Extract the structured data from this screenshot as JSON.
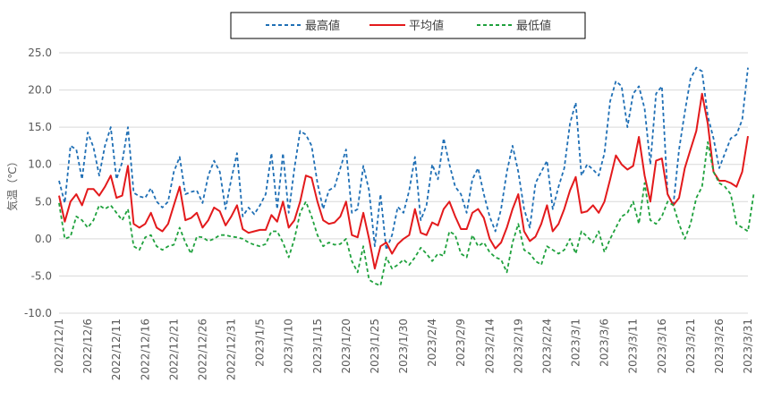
{
  "chart_data": {
    "type": "line",
    "ylabel": "気温（℃）",
    "ylim": [
      -10,
      25
    ],
    "y_ticks": [
      "25.0",
      "20.0",
      "15.0",
      "10.0",
      "5.0",
      "0.0",
      "-5.0",
      "-10.0"
    ],
    "y_tick_values": [
      25,
      20,
      15,
      10,
      5,
      0,
      -5,
      -10
    ],
    "grid": true,
    "legend_position": "top-center",
    "x_start": "2022-12-01",
    "x_tick_labels": [
      "2022/12/1",
      "2022/12/6",
      "2022/12/11",
      "2022/12/16",
      "2022/12/21",
      "2022/12/26",
      "2022/12/31",
      "2023/1/5",
      "2023/1/10",
      "2023/1/15",
      "2023/1/20",
      "2023/1/25",
      "2023/1/30",
      "2023/2/4",
      "2023/2/9",
      "2023/2/14",
      "2023/2/19",
      "2023/2/24",
      "2023/3/1",
      "2023/3/6",
      "2023/3/11",
      "2023/3/16",
      "2023/3/21",
      "2023/3/26",
      "2023/3/31"
    ],
    "series": [
      {
        "name": "最高値",
        "color": "#1f6fb5",
        "style": "dashed",
        "values": [
          7.8,
          4.8,
          12.5,
          12.0,
          8.0,
          14.3,
          12.3,
          8.5,
          12.5,
          15.0,
          8.0,
          10.3,
          15.0,
          6.2,
          5.7,
          5.5,
          6.8,
          5.0,
          4.2,
          5.0,
          9.0,
          11.0,
          6.0,
          6.3,
          6.5,
          4.8,
          8.5,
          10.5,
          9.0,
          4.0,
          8.0,
          11.5,
          3.0,
          4.2,
          3.3,
          4.5,
          6.0,
          11.5,
          4.0,
          11.5,
          3.5,
          9.5,
          14.5,
          14.0,
          12.5,
          7.5,
          4.0,
          6.5,
          7.0,
          9.5,
          12.0,
          3.5,
          4.0,
          9.8,
          6.5,
          -1.0,
          6.0,
          -1.5,
          0.5,
          4.3,
          3.5,
          6.5,
          11.0,
          2.5,
          4.5,
          10.0,
          8.0,
          13.5,
          10.0,
          7.0,
          6.0,
          3.5,
          8.0,
          9.5,
          6.0,
          3.0,
          1.0,
          4.0,
          9.0,
          12.5,
          9.0,
          4.0,
          1.5,
          7.5,
          9.0,
          10.5,
          4.0,
          7.0,
          9.5,
          15.5,
          18.3,
          8.5,
          10.0,
          9.3,
          8.5,
          11.5,
          18.5,
          21.2,
          20.5,
          15.0,
          19.5,
          20.5,
          17.5,
          10.0,
          19.5,
          20.5,
          6.0,
          4.5,
          12.0,
          17.0,
          21.5,
          23.0,
          22.5,
          16.5,
          13.5,
          9.5,
          11.5,
          13.5,
          14.0,
          16.0,
          23.0
        ]
      },
      {
        "name": "平均値",
        "color": "#e31a1c",
        "style": "solid",
        "values": [
          5.8,
          2.3,
          5.0,
          6.0,
          4.5,
          6.7,
          6.7,
          5.8,
          7.0,
          8.5,
          5.5,
          5.8,
          9.8,
          2.0,
          1.5,
          2.0,
          3.5,
          1.5,
          1.0,
          2.0,
          4.5,
          7.0,
          2.5,
          2.8,
          3.5,
          1.5,
          2.5,
          4.2,
          3.7,
          1.8,
          3.0,
          4.5,
          1.3,
          0.8,
          1.0,
          1.2,
          1.2,
          3.2,
          2.3,
          5.0,
          1.5,
          2.5,
          5.0,
          8.5,
          8.2,
          5.0,
          2.5,
          2.0,
          2.2,
          3.0,
          5.0,
          0.5,
          0.2,
          3.5,
          0.0,
          -4.0,
          -1.0,
          -0.5,
          -2.0,
          -0.7,
          0.0,
          0.5,
          4.0,
          0.8,
          0.5,
          2.2,
          1.8,
          4.0,
          5.0,
          3.0,
          1.3,
          1.3,
          3.5,
          4.0,
          2.8,
          0.0,
          -1.3,
          -0.5,
          1.5,
          4.0,
          6.0,
          1.0,
          -0.3,
          0.3,
          2.0,
          4.5,
          1.0,
          2.0,
          4.0,
          6.5,
          8.3,
          3.5,
          3.7,
          4.5,
          3.5,
          5.0,
          8.0,
          11.2,
          10.0,
          9.3,
          9.8,
          13.7,
          8.5,
          5.0,
          10.5,
          10.8,
          6.0,
          4.5,
          5.5,
          9.5,
          12.0,
          14.5,
          19.5,
          15.5,
          9.0,
          7.8,
          7.8,
          7.5,
          7.0,
          9.0,
          13.8
        ]
      },
      {
        "name": "最低値",
        "color": "#1fa13d",
        "style": "dashed",
        "values": [
          4.8,
          0.0,
          0.3,
          3.0,
          2.5,
          1.5,
          2.5,
          4.5,
          4.0,
          4.5,
          3.5,
          2.5,
          4.0,
          -1.0,
          -1.5,
          0.2,
          0.5,
          -1.0,
          -1.5,
          -1.0,
          -0.8,
          1.5,
          -0.5,
          -2.0,
          0.3,
          0.2,
          -0.3,
          0.0,
          0.5,
          0.5,
          0.3,
          0.2,
          0.0,
          -0.5,
          -0.8,
          -1.0,
          -0.7,
          1.0,
          1.0,
          -0.5,
          -2.5,
          0.0,
          3.5,
          5.0,
          3.0,
          0.5,
          -1.0,
          -0.5,
          -0.8,
          -0.7,
          0.0,
          -3.0,
          -4.5,
          -1.0,
          -5.5,
          -6.0,
          -6.3,
          -2.5,
          -4.0,
          -3.5,
          -2.8,
          -3.5,
          -2.5,
          -1.2,
          -2.0,
          -3.0,
          -2.0,
          -2.3,
          1.0,
          0.5,
          -2.0,
          -2.5,
          0.5,
          -1.0,
          -0.5,
          -1.8,
          -2.5,
          -2.8,
          -4.5,
          -0.5,
          2.0,
          -1.5,
          -2.0,
          -3.0,
          -3.5,
          -1.0,
          -1.5,
          -2.0,
          -1.5,
          0.0,
          -2.0,
          1.0,
          0.3,
          -0.5,
          1.0,
          -1.8,
          0.0,
          1.5,
          3.0,
          3.5,
          5.0,
          2.0,
          7.5,
          2.5,
          2.0,
          3.0,
          5.0,
          4.5,
          2.0,
          0.0,
          2.0,
          5.5,
          7.0,
          13.0,
          9.0,
          7.5,
          7.0,
          6.0,
          2.0,
          1.5,
          1.0,
          6.0
        ]
      }
    ]
  }
}
